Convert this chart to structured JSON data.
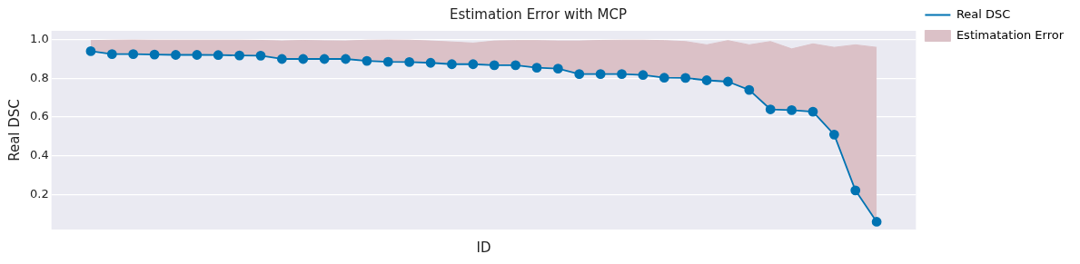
{
  "chart_data": {
    "type": "line",
    "title": "Estimation Error with MCP",
    "xlabel": "ID",
    "ylabel": "Real DSC",
    "categories": [
      null,
      null,
      null,
      null,
      null,
      null,
      null,
      null,
      null,
      null,
      null,
      null,
      null,
      null,
      null,
      null,
      null,
      null,
      null,
      null,
      null,
      null,
      null,
      null,
      null,
      null,
      null,
      null,
      null,
      null,
      null,
      null,
      null,
      null,
      null,
      null,
      null,
      null
    ],
    "series": [
      {
        "name": "Real DSC",
        "color": "#0173b2",
        "marker": "circle",
        "values": [
          0.94,
          0.925,
          0.925,
          0.923,
          0.921,
          0.921,
          0.92,
          0.918,
          0.917,
          0.9,
          0.9,
          0.9,
          0.9,
          0.89,
          0.885,
          0.884,
          0.88,
          0.873,
          0.873,
          0.868,
          0.868,
          0.855,
          0.85,
          0.822,
          0.822,
          0.822,
          0.817,
          0.803,
          0.802,
          0.79,
          0.783,
          0.74,
          0.64,
          0.636,
          0.628,
          0.51,
          0.222,
          0.06
        ]
      },
      {
        "name": "Estimatation Error",
        "type": "area",
        "color": "#dbc1c7",
        "values": [
          0.995,
          0.997,
          0.998,
          0.997,
          0.997,
          0.997,
          0.997,
          0.997,
          0.996,
          0.993,
          0.996,
          0.994,
          0.993,
          0.997,
          0.998,
          0.997,
          0.993,
          0.988,
          0.982,
          0.993,
          0.995,
          0.995,
          0.993,
          0.993,
          0.996,
          0.997,
          0.997,
          0.995,
          0.99,
          0.973,
          0.995,
          0.973,
          0.99,
          0.952,
          0.978,
          0.96,
          0.973,
          0.96
        ]
      }
    ],
    "ylim": [
      0.02,
      1.045
    ],
    "yticks": [
      {
        "value": 0.2,
        "label": "0.2"
      },
      {
        "value": 0.4,
        "label": "0.4"
      },
      {
        "value": 0.6,
        "label": "0.6"
      },
      {
        "value": 0.8,
        "label": "0.8"
      },
      {
        "value": 1.0,
        "label": "1.0"
      }
    ],
    "grid": "y",
    "legend": "top right",
    "tick_labels": "y",
    "line_style": "solid"
  }
}
